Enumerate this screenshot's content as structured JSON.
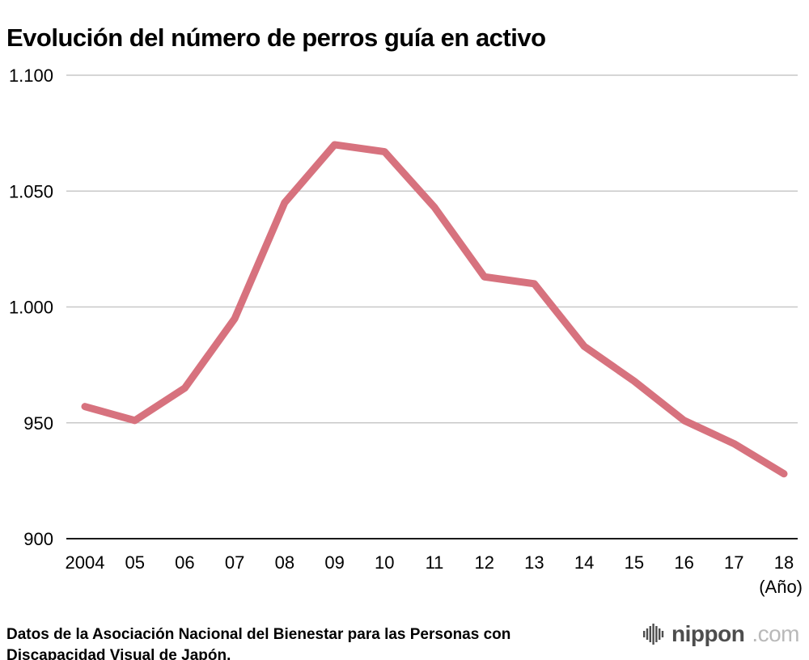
{
  "page": {
    "title": "Evolución del número de perros guía en activo",
    "source": "Datos de la Asociación Nacional del Bienestar para las Personas con Discapacidad Visual de Japón.",
    "logo": {
      "name": "nippon",
      "suffix": ".com"
    }
  },
  "chart_data": {
    "type": "line",
    "title": "Evolución del número de perros guía en activo",
    "x": [
      "2004",
      "05",
      "06",
      "07",
      "08",
      "09",
      "10",
      "11",
      "12",
      "13",
      "14",
      "15",
      "16",
      "17",
      "18"
    ],
    "values": [
      957,
      951,
      965,
      995,
      1045,
      1070,
      1067,
      1043,
      1013,
      1010,
      983,
      968,
      951,
      941,
      928
    ],
    "series_name": "Perros guía en activo",
    "xlabel": "(Año)",
    "ylabel": "",
    "ylim": [
      900,
      1100
    ],
    "yticks": [
      900,
      950,
      1000,
      1050,
      1100
    ],
    "ytick_labels": [
      "900",
      "950",
      "1.000",
      "1.050",
      "1.100"
    ],
    "grid": true,
    "legend": "none",
    "line_color": "#d7727e",
    "line_width": 9,
    "gridline_color": "#c8c8c8",
    "axis_color": "#1a1a1a"
  }
}
